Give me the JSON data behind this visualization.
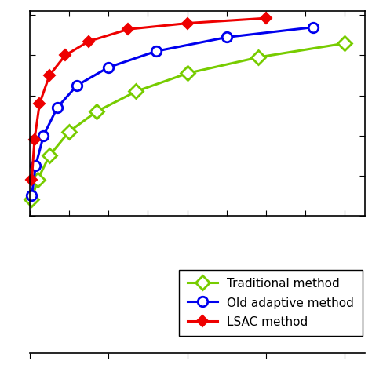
{
  "traditional_x": [
    0.005,
    0.02,
    0.05,
    0.1,
    0.17,
    0.27,
    0.4,
    0.58,
    0.8
  ],
  "traditional_y": [
    0.08,
    0.18,
    0.3,
    0.42,
    0.52,
    0.62,
    0.71,
    0.79,
    0.86
  ],
  "old_adaptive_x": [
    0.005,
    0.015,
    0.035,
    0.07,
    0.12,
    0.2,
    0.32,
    0.5,
    0.72
  ],
  "old_adaptive_y": [
    0.1,
    0.25,
    0.4,
    0.54,
    0.65,
    0.74,
    0.82,
    0.89,
    0.94
  ],
  "lsac_x": [
    0.005,
    0.012,
    0.025,
    0.05,
    0.09,
    0.15,
    0.25,
    0.4,
    0.6
  ],
  "lsac_y": [
    0.18,
    0.38,
    0.56,
    0.7,
    0.8,
    0.87,
    0.93,
    0.96,
    0.985
  ],
  "traditional_color": "#77cc00",
  "old_adaptive_color": "#0000ee",
  "lsac_color": "#ee0000",
  "xlim": [
    0,
    0.85
  ],
  "ylim": [
    0.0,
    1.02
  ],
  "legend_labels": [
    "Traditional method",
    "Old adaptive method",
    "LSAC method"
  ],
  "background_color": "#ffffff",
  "trad_marker": "D",
  "old_marker": "o",
  "lsac_marker": "D"
}
